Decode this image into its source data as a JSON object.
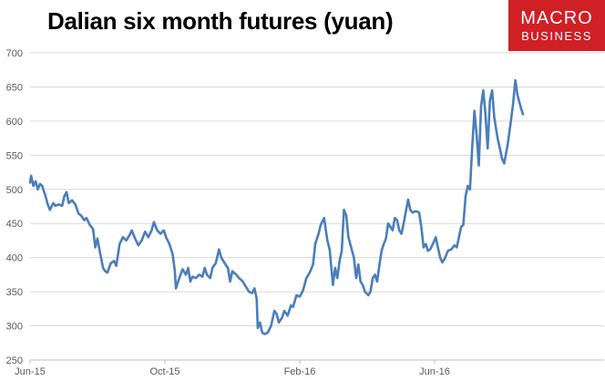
{
  "title": "Dalian six month futures (yuan)",
  "logo": {
    "line1": "MACRO",
    "line2": "BUSINESS",
    "background": "#d11f26"
  },
  "chart_data": {
    "type": "line",
    "title": "Dalian six month futures (yuan)",
    "xlabel": "",
    "ylabel": "",
    "ylim": [
      250,
      700
    ],
    "yticks": [
      250,
      300,
      350,
      400,
      450,
      500,
      550,
      600,
      650,
      700
    ],
    "xticks": [
      "Jun-15",
      "Oct-15",
      "Feb-16",
      "Jun-16"
    ],
    "xlim": [
      "2015-06-01",
      "2016-11-01"
    ],
    "grid": true,
    "legend": "none",
    "series": [
      {
        "color": "#4a7ebb",
        "points": [
          [
            "2015-06-01",
            510
          ],
          [
            "2015-06-02",
            520
          ],
          [
            "2015-06-04",
            505
          ],
          [
            "2015-06-06",
            512
          ],
          [
            "2015-06-08",
            500
          ],
          [
            "2015-06-10",
            508
          ],
          [
            "2015-06-12",
            505
          ],
          [
            "2015-06-15",
            490
          ],
          [
            "2015-06-17",
            478
          ],
          [
            "2015-06-19",
            470
          ],
          [
            "2015-06-22",
            480
          ],
          [
            "2015-06-24",
            476
          ],
          [
            "2015-06-27",
            478
          ],
          [
            "2015-06-30",
            476
          ],
          [
            "2015-07-02",
            490
          ],
          [
            "2015-07-04",
            496
          ],
          [
            "2015-07-06",
            480
          ],
          [
            "2015-07-09",
            484
          ],
          [
            "2015-07-12",
            478
          ],
          [
            "2015-07-15",
            464
          ],
          [
            "2015-07-17",
            462
          ],
          [
            "2015-07-20",
            455
          ],
          [
            "2015-07-22",
            458
          ],
          [
            "2015-07-25",
            448
          ],
          [
            "2015-07-28",
            442
          ],
          [
            "2015-07-30",
            415
          ],
          [
            "2015-08-01",
            428
          ],
          [
            "2015-08-03",
            410
          ],
          [
            "2015-08-06",
            385
          ],
          [
            "2015-08-08",
            380
          ],
          [
            "2015-08-10",
            378
          ],
          [
            "2015-08-13",
            392
          ],
          [
            "2015-08-16",
            395
          ],
          [
            "2015-08-18",
            388
          ],
          [
            "2015-08-21",
            420
          ],
          [
            "2015-08-24",
            430
          ],
          [
            "2015-08-27",
            425
          ],
          [
            "2015-08-30",
            433
          ],
          [
            "2015-09-01",
            440
          ],
          [
            "2015-09-04",
            428
          ],
          [
            "2015-09-07",
            418
          ],
          [
            "2015-09-10",
            425
          ],
          [
            "2015-09-13",
            438
          ],
          [
            "2015-09-16",
            430
          ],
          [
            "2015-09-19",
            440
          ],
          [
            "2015-09-21",
            452
          ],
          [
            "2015-09-24",
            440
          ],
          [
            "2015-09-27",
            435
          ],
          [
            "2015-09-30",
            440
          ],
          [
            "2015-10-02",
            430
          ],
          [
            "2015-10-05",
            420
          ],
          [
            "2015-10-08",
            405
          ],
          [
            "2015-10-10",
            380
          ],
          [
            "2015-10-11",
            355
          ],
          [
            "2015-10-14",
            370
          ],
          [
            "2015-10-17",
            383
          ],
          [
            "2015-10-20",
            375
          ],
          [
            "2015-10-22",
            385
          ],
          [
            "2015-10-24",
            365
          ],
          [
            "2015-10-26",
            372
          ],
          [
            "2015-10-29",
            370
          ],
          [
            "2015-11-01",
            375
          ],
          [
            "2015-11-04",
            372
          ],
          [
            "2015-11-06",
            385
          ],
          [
            "2015-11-08",
            375
          ],
          [
            "2015-11-11",
            370
          ],
          [
            "2015-11-13",
            385
          ],
          [
            "2015-11-16",
            392
          ],
          [
            "2015-11-19",
            412
          ],
          [
            "2015-11-21",
            400
          ],
          [
            "2015-11-24",
            392
          ],
          [
            "2015-11-27",
            385
          ],
          [
            "2015-11-29",
            365
          ],
          [
            "2015-12-01",
            380
          ],
          [
            "2015-12-04",
            376
          ],
          [
            "2015-12-07",
            370
          ],
          [
            "2015-12-10",
            366
          ],
          [
            "2015-12-13",
            358
          ],
          [
            "2015-12-16",
            350
          ],
          [
            "2015-12-19",
            348
          ],
          [
            "2015-12-21",
            355
          ],
          [
            "2015-12-23",
            340
          ],
          [
            "2015-12-24",
            297
          ],
          [
            "2015-12-26",
            305
          ],
          [
            "2015-12-28",
            290
          ],
          [
            "2015-12-30",
            288
          ],
          [
            "2016-01-02",
            290
          ],
          [
            "2016-01-05",
            300
          ],
          [
            "2016-01-08",
            322
          ],
          [
            "2016-01-10",
            318
          ],
          [
            "2016-01-12",
            305
          ],
          [
            "2016-01-15",
            312
          ],
          [
            "2016-01-17",
            322
          ],
          [
            "2016-01-20",
            315
          ],
          [
            "2016-01-23",
            330
          ],
          [
            "2016-01-25",
            328
          ],
          [
            "2016-01-28",
            345
          ],
          [
            "2016-01-31",
            343
          ],
          [
            "2016-02-03",
            352
          ],
          [
            "2016-02-06",
            370
          ],
          [
            "2016-02-09",
            378
          ],
          [
            "2016-02-12",
            390
          ],
          [
            "2016-02-14",
            420
          ],
          [
            "2016-02-17",
            435
          ],
          [
            "2016-02-19",
            448
          ],
          [
            "2016-02-22",
            458
          ],
          [
            "2016-02-25",
            425
          ],
          [
            "2016-02-27",
            412
          ],
          [
            "2016-03-01",
            360
          ],
          [
            "2016-03-03",
            385
          ],
          [
            "2016-03-05",
            370
          ],
          [
            "2016-03-07",
            395
          ],
          [
            "2016-03-09",
            410
          ],
          [
            "2016-03-11",
            470
          ],
          [
            "2016-03-13",
            462
          ],
          [
            "2016-03-15",
            430
          ],
          [
            "2016-03-18",
            412
          ],
          [
            "2016-03-20",
            400
          ],
          [
            "2016-03-22",
            370
          ],
          [
            "2016-03-24",
            390
          ],
          [
            "2016-03-26",
            365
          ],
          [
            "2016-03-28",
            360
          ],
          [
            "2016-03-30",
            350
          ],
          [
            "2016-04-02",
            345
          ],
          [
            "2016-04-04",
            350
          ],
          [
            "2016-04-06",
            370
          ],
          [
            "2016-04-08",
            375
          ],
          [
            "2016-04-10",
            365
          ],
          [
            "2016-04-12",
            388
          ],
          [
            "2016-04-14",
            410
          ],
          [
            "2016-04-16",
            420
          ],
          [
            "2016-04-18",
            428
          ],
          [
            "2016-04-20",
            450
          ],
          [
            "2016-04-22",
            445
          ],
          [
            "2016-04-24",
            440
          ],
          [
            "2016-04-26",
            458
          ],
          [
            "2016-04-28",
            455
          ],
          [
            "2016-04-30",
            440
          ],
          [
            "2016-05-02",
            435
          ],
          [
            "2016-05-04",
            450
          ],
          [
            "2016-05-06",
            468
          ],
          [
            "2016-05-08",
            485
          ],
          [
            "2016-05-10",
            470
          ],
          [
            "2016-05-12",
            466
          ],
          [
            "2016-05-15",
            468
          ],
          [
            "2016-05-18",
            466
          ],
          [
            "2016-05-20",
            445
          ],
          [
            "2016-05-22",
            415
          ],
          [
            "2016-05-24",
            420
          ],
          [
            "2016-05-26",
            410
          ],
          [
            "2016-05-28",
            412
          ],
          [
            "2016-05-31",
            422
          ],
          [
            "2016-06-02",
            430
          ],
          [
            "2016-06-04",
            415
          ],
          [
            "2016-06-06",
            400
          ],
          [
            "2016-06-08",
            393
          ],
          [
            "2016-06-10",
            398
          ],
          [
            "2016-06-13",
            410
          ],
          [
            "2016-06-16",
            412
          ],
          [
            "2016-06-19",
            418
          ],
          [
            "2016-06-21",
            415
          ],
          [
            "2016-06-23",
            430
          ],
          [
            "2016-06-25",
            445
          ],
          [
            "2016-06-27",
            448
          ],
          [
            "2016-06-29",
            490
          ],
          [
            "2016-07-01",
            505
          ],
          [
            "2016-07-03",
            500
          ],
          [
            "2016-07-05",
            560
          ],
          [
            "2016-07-07",
            615
          ],
          [
            "2016-07-09",
            580
          ],
          [
            "2016-07-11",
            535
          ],
          [
            "2016-07-13",
            622
          ],
          [
            "2016-07-15",
            645
          ],
          [
            "2016-07-17",
            610
          ],
          [
            "2016-07-19",
            560
          ],
          [
            "2016-07-21",
            630
          ],
          [
            "2016-07-23",
            645
          ],
          [
            "2016-07-25",
            605
          ],
          [
            "2016-07-28",
            575
          ],
          [
            "2016-07-30",
            560
          ],
          [
            "2016-08-01",
            545
          ],
          [
            "2016-08-03",
            538
          ],
          [
            "2016-08-06",
            565
          ],
          [
            "2016-08-09",
            600
          ],
          [
            "2016-08-11",
            625
          ],
          [
            "2016-08-13",
            660
          ],
          [
            "2016-08-15",
            638
          ],
          [
            "2016-08-18",
            620
          ],
          [
            "2016-08-20",
            610
          ]
        ]
      }
    ]
  }
}
